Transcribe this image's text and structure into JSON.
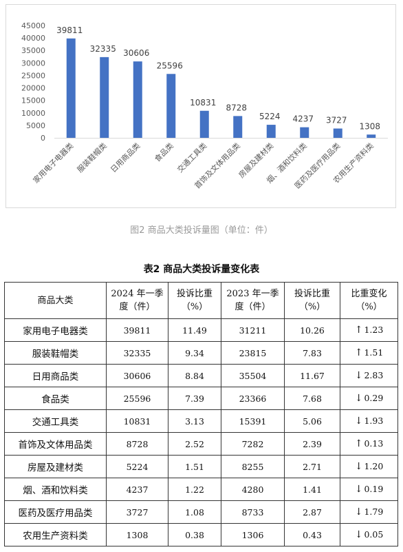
{
  "chart_data": {
    "type": "bar",
    "title": "",
    "xlabel": "",
    "ylabel": "",
    "ylim": [
      0,
      45000
    ],
    "yticks": [
      0,
      5000,
      10000,
      15000,
      20000,
      25000,
      30000,
      35000,
      40000,
      45000
    ],
    "categories": [
      "家用电子电器类",
      "服装鞋帽类",
      "日用商品类",
      "食品类",
      "交通工具类",
      "首饰及文体用品类",
      "房屋及建材类",
      "烟、酒和饮料类",
      "医药及医疗用品类",
      "农用生产资料类"
    ],
    "values": [
      39811,
      32335,
      30606,
      25596,
      10831,
      8728,
      5224,
      4237,
      3727,
      1308
    ],
    "bar_color": "#4472c4",
    "grid": false,
    "legend": "none",
    "data_labels": true
  },
  "figure_caption": "图2 商品大类投诉量图（单位：件）",
  "table": {
    "title": "表2 商品大类投诉量变化表",
    "headers": [
      "商品大类",
      "2024 年一季度（件）",
      "投诉比重（%）",
      "2023 年一季度（件）",
      "投诉比重（%）",
      "比重变化（%）"
    ],
    "rows": [
      {
        "name": "家用电子电器类",
        "v2024": "39811",
        "share2024": "11.49",
        "v2023": "31211",
        "share2023": "10.26",
        "change": "1.23",
        "dir": "up"
      },
      {
        "name": "服装鞋帽类",
        "v2024": "32335",
        "share2024": "9.34",
        "v2023": "23815",
        "share2023": "7.83",
        "change": "1.51",
        "dir": "up"
      },
      {
        "name": "日用商品类",
        "v2024": "30606",
        "share2024": "8.84",
        "v2023": "35504",
        "share2023": "11.67",
        "change": "2.83",
        "dir": "down"
      },
      {
        "name": "食品类",
        "v2024": "25596",
        "share2024": "7.39",
        "v2023": "23366",
        "share2023": "7.68",
        "change": "0.29",
        "dir": "down"
      },
      {
        "name": "交通工具类",
        "v2024": "10831",
        "share2024": "3.13",
        "v2023": "15391",
        "share2023": "5.06",
        "change": "1.93",
        "dir": "down"
      },
      {
        "name": "首饰及文体用品类",
        "v2024": "8728",
        "share2024": "2.52",
        "v2023": "7282",
        "share2023": "2.39",
        "change": "0.13",
        "dir": "up"
      },
      {
        "name": "房屋及建材类",
        "v2024": "5224",
        "share2024": "1.51",
        "v2023": "8255",
        "share2023": "2.71",
        "change": "1.20",
        "dir": "down"
      },
      {
        "name": "烟、酒和饮料类",
        "v2024": "4237",
        "share2024": "1.22",
        "v2023": "4280",
        "share2023": "1.41",
        "change": "0.19",
        "dir": "down"
      },
      {
        "name": "医药及医疗用品类",
        "v2024": "3727",
        "share2024": "1.08",
        "v2023": "8733",
        "share2023": "2.87",
        "change": "1.79",
        "dir": "down"
      },
      {
        "name": "农用生产资料类",
        "v2024": "1308",
        "share2024": "0.38",
        "v2023": "1306",
        "share2023": "0.43",
        "change": "0.05",
        "dir": "down"
      }
    ]
  }
}
